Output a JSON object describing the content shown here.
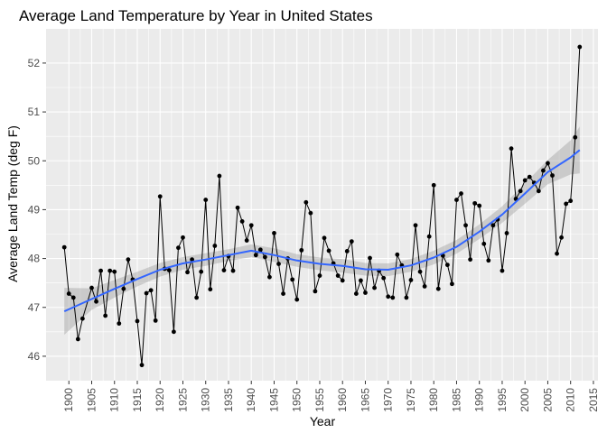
{
  "chart_data": {
    "type": "line",
    "title": "Average Land Temperature by Year in United States",
    "xlabel": "Year",
    "ylabel": "Average Land Temp (deg F)",
    "xlim": [
      1895,
      2016
    ],
    "ylim": [
      45.5,
      52.7
    ],
    "x_ticks": [
      1900,
      1905,
      1910,
      1915,
      1920,
      1925,
      1930,
      1935,
      1940,
      1945,
      1950,
      1955,
      1960,
      1965,
      1970,
      1975,
      1980,
      1985,
      1990,
      1995,
      2000,
      2005,
      2010,
      2015
    ],
    "y_ticks": [
      46,
      47,
      48,
      49,
      50,
      51,
      52
    ],
    "grid": true,
    "legend": "none",
    "colors": {
      "panel": "#ebebeb",
      "grid": "#ffffff",
      "line": "#000000",
      "points": "#000000",
      "smooth": "#3366ff",
      "ribbon": "#999999"
    },
    "series": [
      {
        "x": [
          1899,
          1900,
          1901,
          1902,
          1903,
          1905,
          1906,
          1907,
          1908,
          1909,
          1910,
          1911,
          1912,
          1913,
          1914,
          1915,
          1916,
          1917,
          1918,
          1919,
          1920,
          1921,
          1922,
          1923,
          1924,
          1925,
          1926,
          1927,
          1928,
          1929,
          1930,
          1931,
          1932,
          1933,
          1934,
          1935,
          1936,
          1937,
          1938,
          1939,
          1940,
          1941,
          1942,
          1943,
          1944,
          1945,
          1946,
          1947,
          1948,
          1949,
          1950,
          1951,
          1952,
          1953,
          1954,
          1955,
          1956,
          1957,
          1958,
          1959,
          1960,
          1961,
          1962,
          1963,
          1964,
          1965,
          1966,
          1967,
          1968,
          1969,
          1970,
          1971,
          1972,
          1973,
          1974,
          1975,
          1976,
          1977,
          1978,
          1979,
          1980,
          1981,
          1982,
          1983,
          1984,
          1985,
          1986,
          1987,
          1988,
          1989,
          1990,
          1991,
          1992,
          1993,
          1994,
          1995,
          1996,
          1997,
          1998,
          1999,
          2000,
          2001,
          2002,
          2003,
          2004,
          2005,
          2006,
          2007,
          2008,
          2009,
          2010,
          2011,
          2012
        ],
        "y": [
          48.23,
          47.28,
          47.2,
          46.35,
          46.77,
          47.4,
          47.12,
          47.75,
          46.83,
          47.75,
          47.73,
          46.67,
          47.38,
          47.98,
          47.57,
          46.72,
          45.82,
          47.29,
          47.35,
          46.73,
          49.27,
          47.79,
          47.76,
          46.5,
          48.22,
          48.43,
          47.72,
          47.98,
          47.2,
          47.73,
          49.2,
          47.37,
          48.26,
          49.69,
          47.76,
          48.05,
          47.75,
          49.04,
          48.76,
          48.37,
          48.68,
          48.07,
          48.18,
          48.03,
          47.62,
          48.52,
          47.89,
          47.28,
          48.0,
          47.57,
          47.16,
          48.17,
          49.15,
          48.93,
          47.33,
          47.65,
          48.42,
          48.16,
          47.9,
          47.65,
          47.55,
          48.15,
          48.35,
          47.28,
          47.55,
          47.3,
          48.01,
          47.4,
          47.75,
          47.6,
          47.22,
          47.2,
          48.08,
          47.86,
          47.2,
          47.56,
          48.68,
          47.73,
          47.43,
          48.45,
          49.5,
          47.38,
          48.06,
          47.87,
          47.48,
          49.2,
          49.33,
          48.68,
          47.98,
          49.13,
          49.08,
          48.3,
          47.96,
          48.68,
          48.8,
          47.75,
          48.52,
          50.25,
          49.22,
          49.38,
          49.6,
          49.67,
          49.55,
          49.38,
          49.8,
          49.95,
          49.7,
          48.1,
          48.43,
          49.12,
          49.18,
          50.48,
          52.33
        ]
      }
    ],
    "smooth": {
      "x": [
        1899,
        1905,
        1910,
        1915,
        1920,
        1925,
        1930,
        1935,
        1940,
        1945,
        1950,
        1955,
        1960,
        1965,
        1970,
        1975,
        1980,
        1985,
        1990,
        1995,
        2000,
        2005,
        2010,
        2012
      ],
      "y": [
        46.92,
        47.17,
        47.38,
        47.58,
        47.77,
        47.9,
        47.98,
        48.07,
        48.16,
        48.07,
        47.96,
        47.89,
        47.85,
        47.78,
        47.77,
        47.86,
        48.02,
        48.24,
        48.55,
        48.9,
        49.33,
        49.77,
        50.07,
        50.22
      ],
      "lo": [
        46.44,
        46.95,
        47.2,
        47.43,
        47.63,
        47.77,
        47.85,
        47.95,
        48.03,
        47.93,
        47.83,
        47.76,
        47.71,
        47.65,
        47.64,
        47.73,
        47.88,
        48.1,
        48.4,
        48.73,
        49.12,
        49.52,
        49.72,
        49.74
      ],
      "hi": [
        47.4,
        47.39,
        47.56,
        47.73,
        47.91,
        48.03,
        48.11,
        48.19,
        48.29,
        48.21,
        48.09,
        48.02,
        47.99,
        47.91,
        47.9,
        47.99,
        48.16,
        48.38,
        48.7,
        49.07,
        49.54,
        50.02,
        50.42,
        50.7
      ]
    }
  }
}
